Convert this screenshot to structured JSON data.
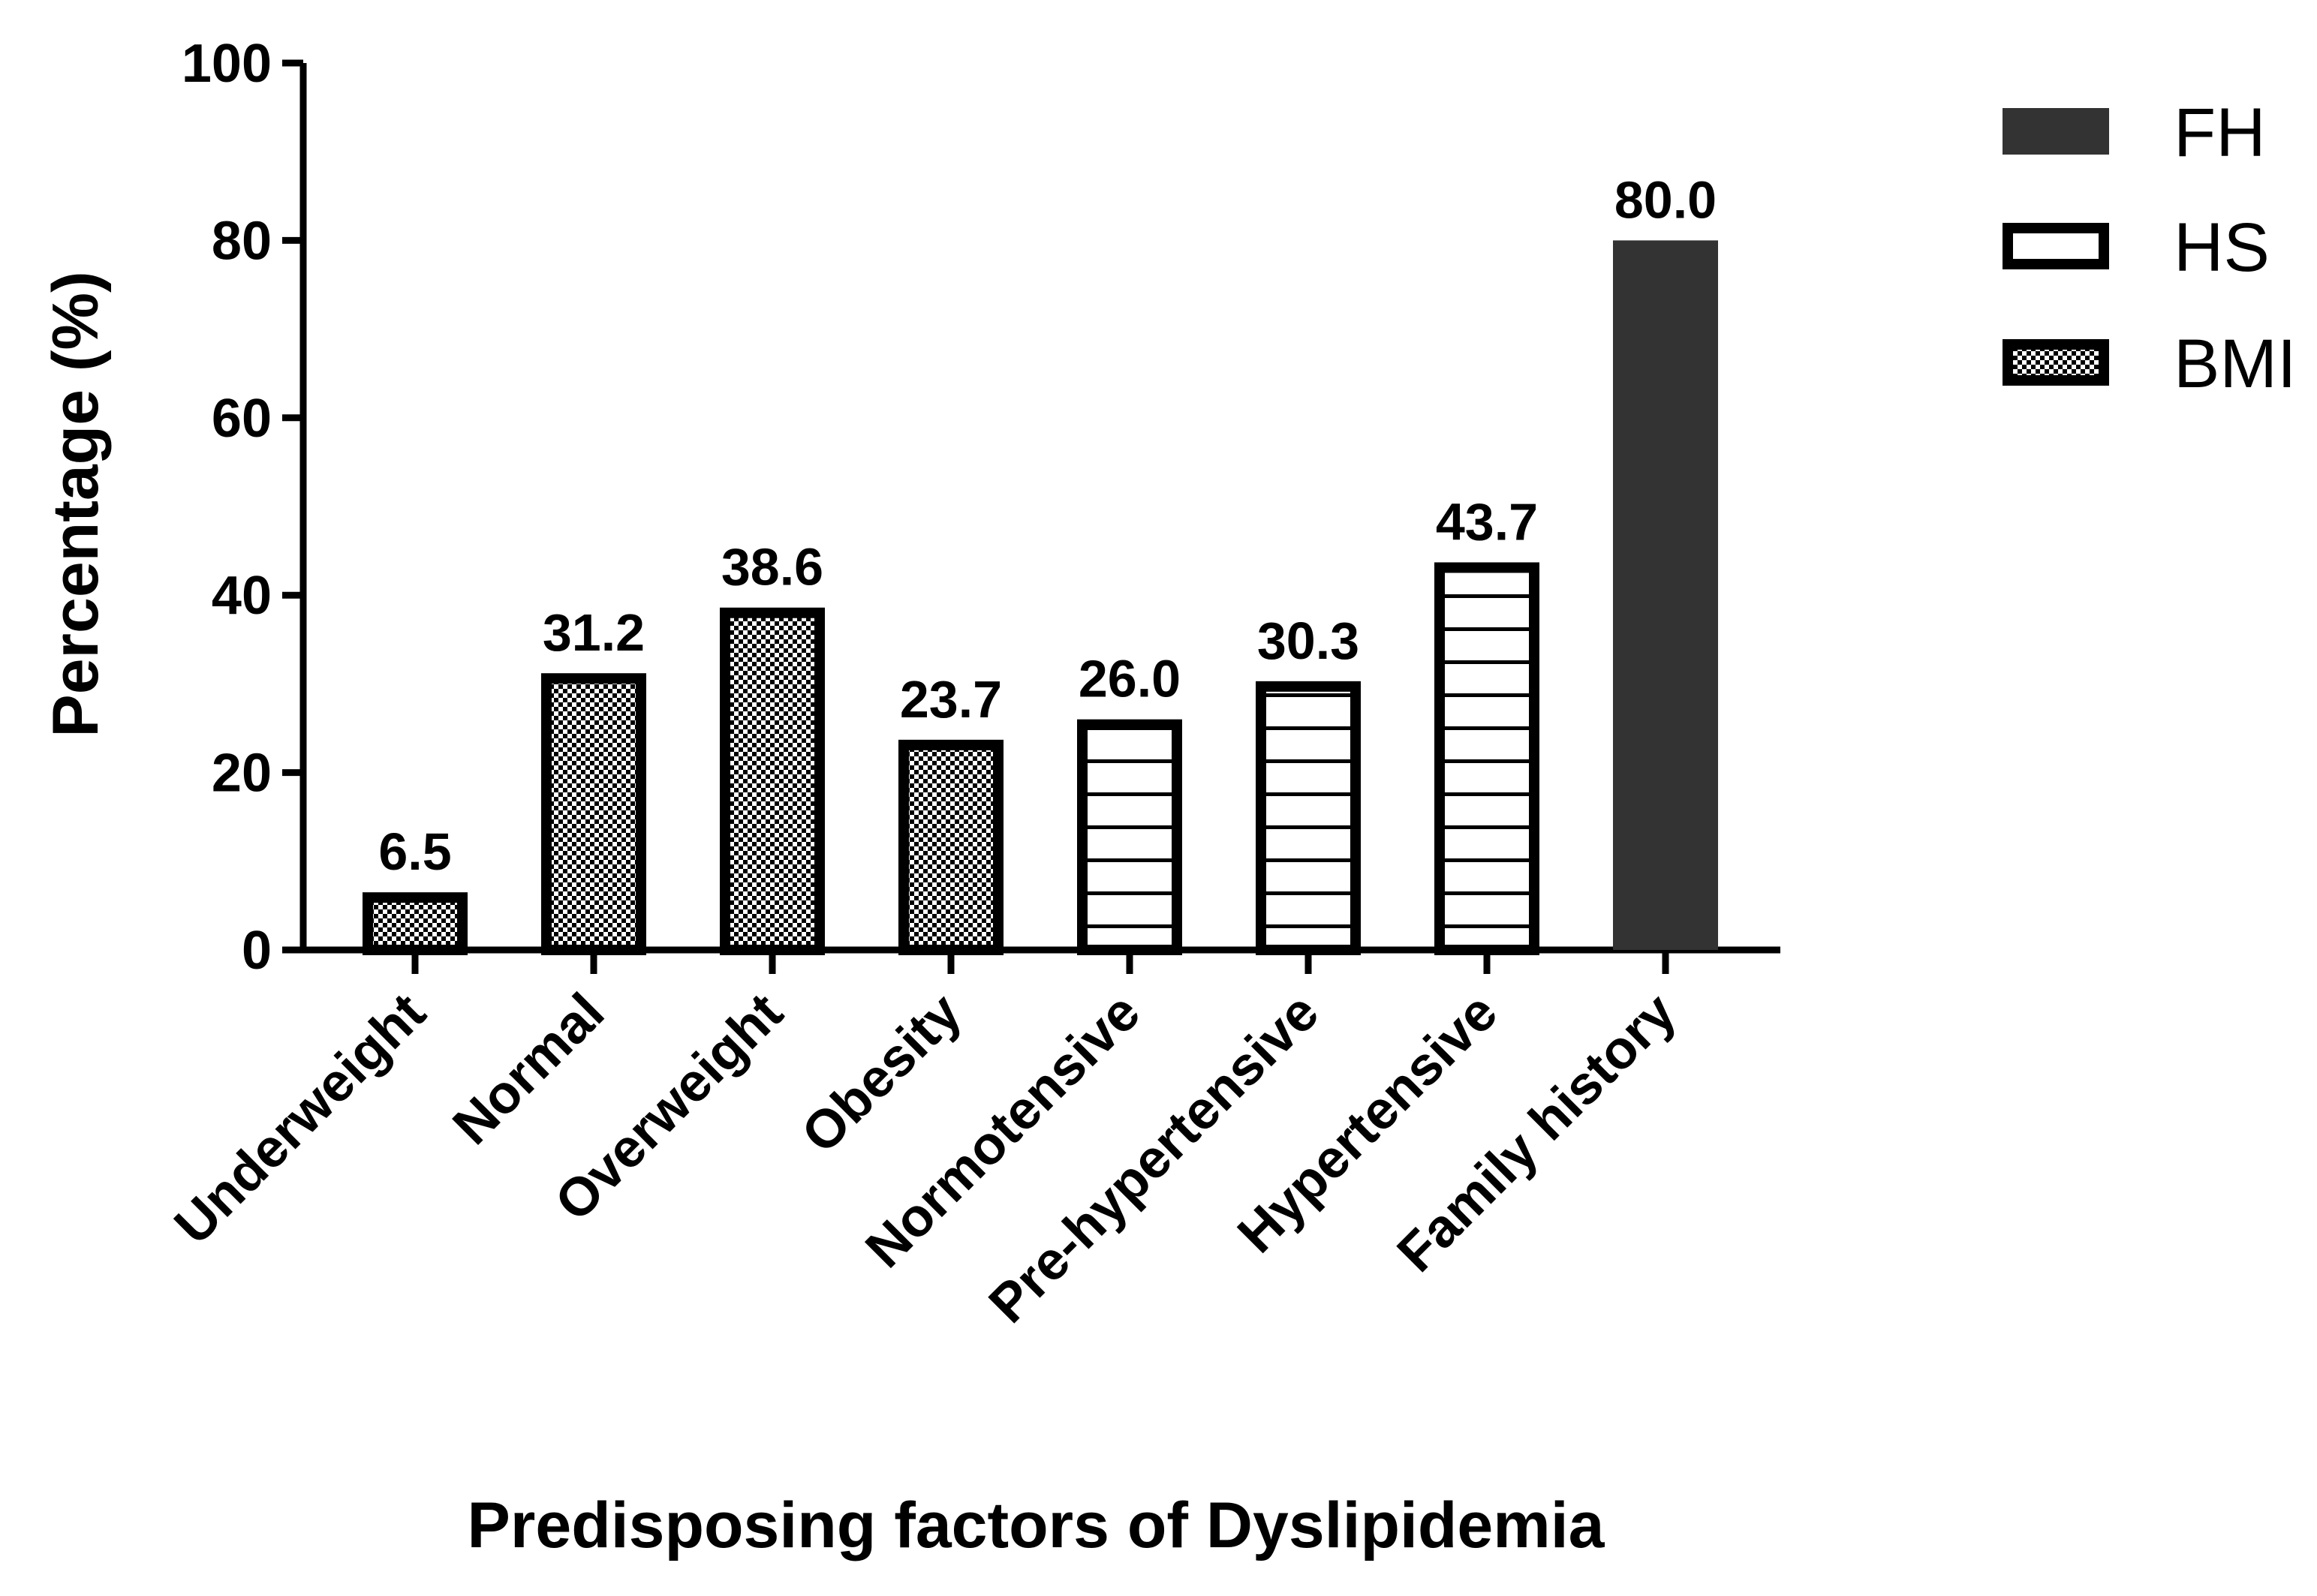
{
  "chart_data": {
    "type": "bar",
    "title": "",
    "xlabel": "Predisposing factors of Dyslipidemia",
    "ylabel": "Percentage (%)",
    "ylim": [
      0,
      100
    ],
    "yticks": [
      0,
      20,
      40,
      60,
      80,
      100
    ],
    "grid": false,
    "legend_position": "top-right",
    "categories": [
      "Underweight",
      "Normal",
      "Overweight",
      "Obesity",
      "Normotensive",
      "Pre-hypertensive",
      "Hypertensive",
      "Family history"
    ],
    "values": [
      6.5,
      31.2,
      38.6,
      23.7,
      26.0,
      30.3,
      43.7,
      80.0
    ],
    "data_labels": [
      "6.5",
      "31.2",
      "38.6",
      "23.7",
      "26.0",
      "30.3",
      "43.7",
      "80.0"
    ],
    "bar_group": [
      "BMI",
      "BMI",
      "BMI",
      "BMI",
      "HS",
      "HS",
      "HS",
      "FH"
    ],
    "series": [
      {
        "name": "FH",
        "pattern": "solid"
      },
      {
        "name": "HS",
        "pattern": "horizontal-lines"
      },
      {
        "name": "BMI",
        "pattern": "checkerboard"
      }
    ],
    "colors": {
      "fh_fill": "#333333",
      "stroke": "#000000",
      "background": "#ffffff"
    }
  }
}
